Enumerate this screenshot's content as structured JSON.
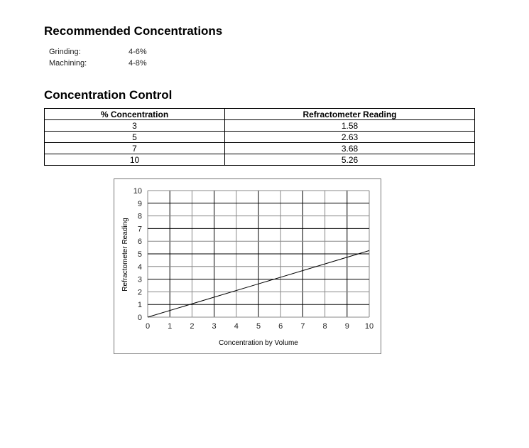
{
  "recommended": {
    "title": "Recommended Concentrations",
    "items": [
      {
        "label": "Grinding:",
        "value": "4-6%"
      },
      {
        "label": "Machining:",
        "value": "4-8%"
      }
    ]
  },
  "control": {
    "title": "Concentration Control",
    "headers": [
      "% Concentration",
      "Refractometer Reading"
    ],
    "rows": [
      [
        "3",
        "1.58"
      ],
      [
        "5",
        "2.63"
      ],
      [
        "7",
        "3.68"
      ],
      [
        "10",
        "5.26"
      ]
    ]
  },
  "chart_data": {
    "type": "line",
    "xlabel": "Concentration by Volume",
    "ylabel": "Refractometer Reading",
    "xlim": [
      0,
      10
    ],
    "ylim": [
      0,
      10
    ],
    "xticks": [
      "0",
      "1",
      "2",
      "3",
      "4",
      "5",
      "6",
      "7",
      "8",
      "9",
      "10"
    ],
    "yticks": [
      "0",
      "1",
      "2",
      "3",
      "4",
      "5",
      "6",
      "7",
      "8",
      "9",
      "10"
    ],
    "grid": true,
    "series": [
      {
        "x": [
          0,
          3,
          5,
          7,
          10
        ],
        "y": [
          0,
          1.58,
          2.63,
          3.68,
          5.26
        ]
      }
    ],
    "colors": {
      "line": "#000000",
      "grid": "#000000"
    }
  }
}
